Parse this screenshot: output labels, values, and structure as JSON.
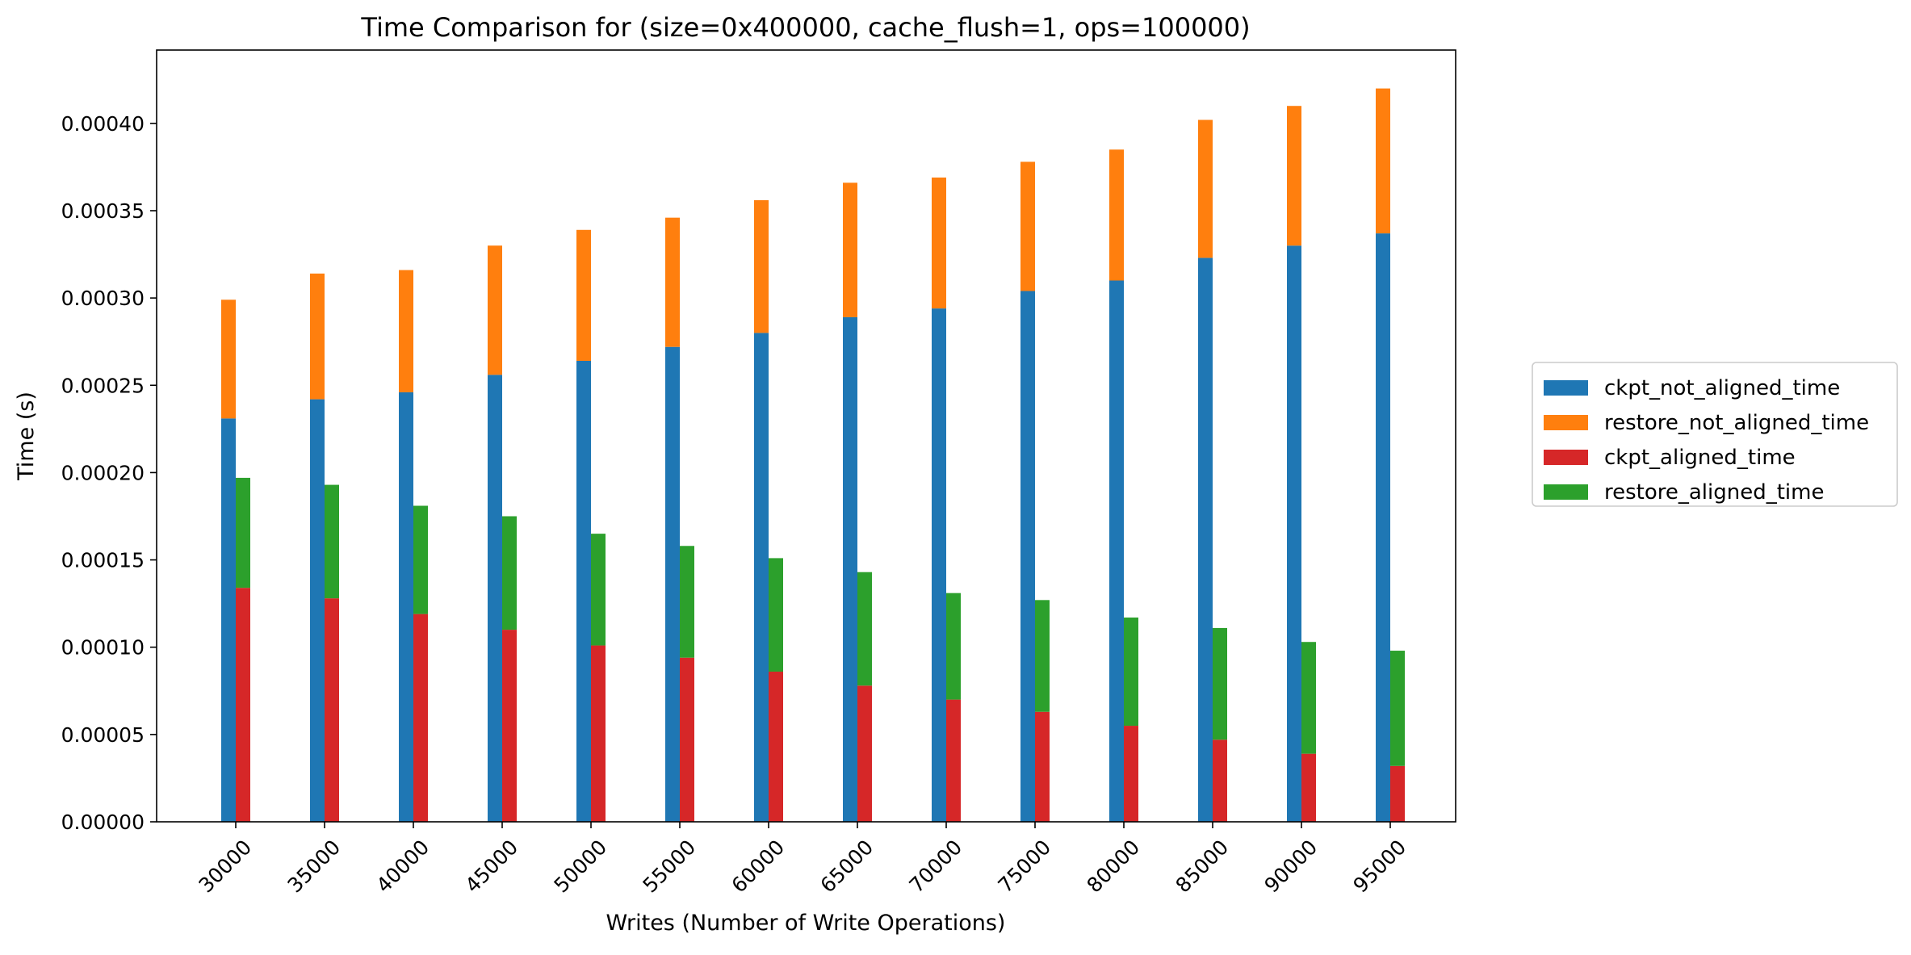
{
  "chart_data": {
    "type": "bar",
    "stacked": true,
    "title": "Time Comparison for (size=0x400000, cache_flush=1, ops=100000)",
    "xlabel": "Writes (Number of Write Operations)",
    "ylabel": "Time (s)",
    "ylim": [
      0,
      0.000442
    ],
    "y_ticks": [
      "0.00000",
      "0.00005",
      "0.00010",
      "0.00015",
      "0.00020",
      "0.00025",
      "0.00030",
      "0.00035",
      "0.00040"
    ],
    "y_tick_values": [
      0,
      5e-05,
      0.0001,
      0.00015,
      0.0002,
      0.00025,
      0.0003,
      0.00035,
      0.0004
    ],
    "categories": [
      "30000",
      "35000",
      "40000",
      "45000",
      "50000",
      "55000",
      "60000",
      "65000",
      "70000",
      "75000",
      "80000",
      "85000",
      "90000",
      "95000"
    ],
    "grid": false,
    "legend_position": "right",
    "groups": [
      {
        "name": "not_aligned",
        "series": [
          {
            "name": "ckpt_not_aligned_time",
            "color": "#1f77b4",
            "values": [
              0.000231,
              0.000242,
              0.000246,
              0.000256,
              0.000264,
              0.000272,
              0.00028,
              0.000289,
              0.000294,
              0.000304,
              0.00031,
              0.000323,
              0.00033,
              0.000337
            ]
          },
          {
            "name": "restore_not_aligned_time",
            "color": "#ff7f0e",
            "values": [
              6.8e-05,
              7.2e-05,
              7e-05,
              7.4e-05,
              7.5e-05,
              7.4e-05,
              7.6e-05,
              7.7e-05,
              7.5e-05,
              7.4e-05,
              7.5e-05,
              7.9e-05,
              8e-05,
              8.3e-05
            ]
          }
        ]
      },
      {
        "name": "aligned",
        "series": [
          {
            "name": "ckpt_aligned_time",
            "color": "#d62728",
            "values": [
              0.000134,
              0.000128,
              0.000119,
              0.00011,
              0.000101,
              9.4e-05,
              8.6e-05,
              7.8e-05,
              7e-05,
              6.3e-05,
              5.5e-05,
              4.7e-05,
              3.9e-05,
              3.2e-05
            ]
          },
          {
            "name": "restore_aligned_time",
            "color": "#2ca02c",
            "values": [
              6.3e-05,
              6.5e-05,
              6.2e-05,
              6.5e-05,
              6.4e-05,
              6.4e-05,
              6.5e-05,
              6.5e-05,
              6.1e-05,
              6.4e-05,
              6.2e-05,
              6.4e-05,
              6.4e-05,
              6.6e-05
            ]
          }
        ]
      }
    ],
    "legend": [
      {
        "label": "ckpt_not_aligned_time",
        "color": "#1f77b4"
      },
      {
        "label": "restore_not_aligned_time",
        "color": "#ff7f0e"
      },
      {
        "label": "ckpt_aligned_time",
        "color": "#d62728"
      },
      {
        "label": "restore_aligned_time",
        "color": "#2ca02c"
      }
    ]
  }
}
